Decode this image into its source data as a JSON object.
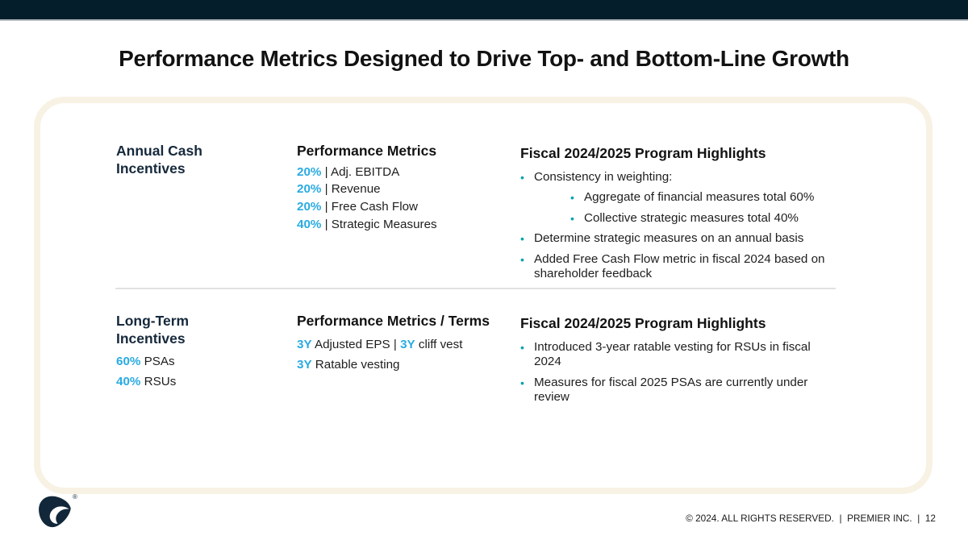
{
  "title": "Performance Metrics Designed to Drive Top- and Bottom-Line Growth",
  "colors": {
    "top_bar_navy": "#051E2B",
    "accent_cyan": "#29ABE2",
    "bullet_teal": "#00A3AD",
    "heading_navy": "#16293C",
    "card_border_cream": "#F8F2E4"
  },
  "sections": [
    {
      "id": "annual-cash-incentives",
      "label": "Annual Cash Incentives",
      "label_lines": [],
      "metrics": {
        "heading": "Performance Metrics",
        "lines": [
          [
            {
              "t": "20%",
              "a": true
            },
            {
              "t": " | Adj. EBITDA",
              "a": false
            }
          ],
          [
            {
              "t": "20%",
              "a": true
            },
            {
              "t": " | Revenue",
              "a": false
            }
          ],
          [
            {
              "t": "20%",
              "a": true
            },
            {
              "t": " | Free Cash Flow",
              "a": false
            }
          ],
          [
            {
              "t": "40%",
              "a": true
            },
            {
              "t": " | Strategic Measures",
              "a": false
            }
          ]
        ]
      },
      "highlights": {
        "heading": "Fiscal 2024/2025 Program Highlights",
        "bullets": [
          {
            "level": 1,
            "text": "Consistency in weighting:"
          },
          {
            "level": 2,
            "text": "Aggregate of financial measures total 60%"
          },
          {
            "level": 2,
            "text": "Collective strategic measures total 40%"
          },
          {
            "level": 1,
            "text": "Determine strategic measures on an annual basis"
          },
          {
            "level": 1,
            "text": "Added Free Cash Flow metric in fiscal 2024 based on shareholder feedback"
          }
        ]
      }
    },
    {
      "id": "long-term-incentives",
      "label": "Long-Term Incentives",
      "label_lines": [
        [
          {
            "t": "60%",
            "a": true
          },
          {
            "t": " PSAs",
            "a": false
          }
        ],
        [
          {
            "t": "40%",
            "a": true
          },
          {
            "t": " RSUs",
            "a": false
          }
        ]
      ],
      "metrics": {
        "heading": "Performance Metrics / Terms",
        "lines": [
          [
            {
              "t": "3Y",
              "a": true
            },
            {
              "t": " Adjusted EPS | ",
              "a": false
            },
            {
              "t": "3Y",
              "a": true
            },
            {
              "t": " cliff vest",
              "a": false
            }
          ],
          [
            {
              "t": "3Y",
              "a": true
            },
            {
              "t": " Ratable vesting",
              "a": false
            }
          ]
        ]
      },
      "highlights": {
        "heading": "Fiscal 2024/2025 Program Highlights",
        "bullets": [
          {
            "level": 1,
            "text": "Introduced 3-year ratable vesting for RSUs in fiscal 2024"
          },
          {
            "level": 1,
            "text": "Measures for fiscal 2025 PSAs are currently under review"
          }
        ]
      }
    }
  ],
  "footer": {
    "text": "© 2024. ALL RIGHTS RESERVED.  |  PREMIER INC.  |  12",
    "logo_mark": "®"
  }
}
